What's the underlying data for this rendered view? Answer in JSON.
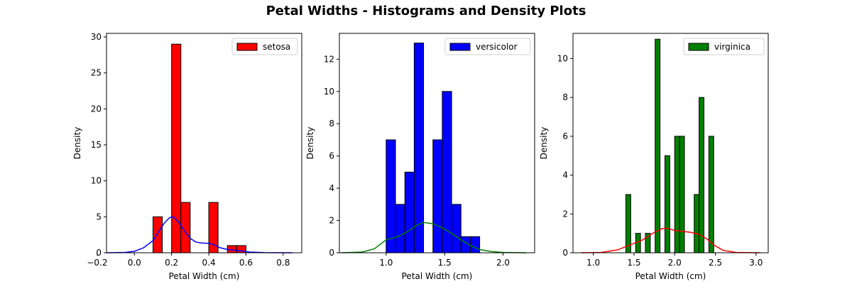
{
  "title": "Petal Widths - Histograms and Density Plots",
  "chart_data": [
    {
      "type": "bar",
      "subtype": "histogram-with-density",
      "xlabel": "Petal Width (cm)",
      "ylabel": "Density",
      "xlim": [
        -0.15,
        0.9
      ],
      "ylim": [
        0,
        30.5
      ],
      "xticks": [
        -0.2,
        0.0,
        0.2,
        0.4,
        0.6,
        0.8
      ],
      "xtick_labels": [
        "−0.2",
        "0.0",
        "0.2",
        "0.4",
        "0.6",
        "0.8"
      ],
      "yticks": [
        0,
        5,
        10,
        15,
        20,
        25,
        30
      ],
      "ytick_labels": [
        "0",
        "5",
        "10",
        "15",
        "20",
        "25",
        "30"
      ],
      "bar_color": "#ff0000",
      "density_color": "#0000ff",
      "legend": "setosa",
      "legend_position": "top-right",
      "bins": [
        {
          "x0": 0.1,
          "x1": 0.15,
          "value": 5
        },
        {
          "x0": 0.15,
          "x1": 0.2,
          "value": 0
        },
        {
          "x0": 0.2,
          "x1": 0.25,
          "value": 29
        },
        {
          "x0": 0.25,
          "x1": 0.3,
          "value": 7
        },
        {
          "x0": 0.3,
          "x1": 0.35,
          "value": 0
        },
        {
          "x0": 0.35,
          "x1": 0.4,
          "value": 0
        },
        {
          "x0": 0.4,
          "x1": 0.45,
          "value": 7
        },
        {
          "x0": 0.45,
          "x1": 0.5,
          "value": 0
        },
        {
          "x0": 0.5,
          "x1": 0.55,
          "value": 1
        },
        {
          "x0": 0.55,
          "x1": 0.6,
          "value": 1
        }
      ],
      "density": {
        "x": [
          -0.15,
          -0.05,
          0.0,
          0.05,
          0.1,
          0.13,
          0.16,
          0.19,
          0.21,
          0.24,
          0.27,
          0.3,
          0.33,
          0.36,
          0.4,
          0.43,
          0.46,
          0.5,
          0.54,
          0.58,
          0.62,
          0.7,
          0.85
        ],
        "y": [
          0,
          0.05,
          0.2,
          0.7,
          1.7,
          2.9,
          4.1,
          4.9,
          5.0,
          4.2,
          3.0,
          2.0,
          1.5,
          1.35,
          1.3,
          1.1,
          0.7,
          0.45,
          0.35,
          0.25,
          0.1,
          0.02,
          0
        ]
      }
    },
    {
      "type": "bar",
      "subtype": "histogram-with-density",
      "xlabel": "Petal Width (cm)",
      "ylabel": "Density",
      "xlim": [
        0.6,
        2.27
      ],
      "ylim": [
        0,
        13.6
      ],
      "xticks": [
        1.0,
        1.5,
        2.0
      ],
      "xtick_labels": [
        "1.0",
        "1.5",
        "2.0"
      ],
      "yticks": [
        0,
        2,
        4,
        6,
        8,
        10,
        12
      ],
      "ytick_labels": [
        "0",
        "2",
        "4",
        "6",
        "8",
        "10",
        "12"
      ],
      "bar_color": "#0000ff",
      "density_color": "#008000",
      "legend": "versicolor",
      "legend_position": "top-right",
      "bins": [
        {
          "x0": 1.0,
          "x1": 1.08,
          "value": 7
        },
        {
          "x0": 1.08,
          "x1": 1.16,
          "value": 3
        },
        {
          "x0": 1.16,
          "x1": 1.24,
          "value": 5
        },
        {
          "x0": 1.24,
          "x1": 1.32,
          "value": 13
        },
        {
          "x0": 1.32,
          "x1": 1.4,
          "value": 0
        },
        {
          "x0": 1.4,
          "x1": 1.48,
          "value": 7
        },
        {
          "x0": 1.48,
          "x1": 1.56,
          "value": 10
        },
        {
          "x0": 1.56,
          "x1": 1.64,
          "value": 3
        },
        {
          "x0": 1.64,
          "x1": 1.72,
          "value": 1
        },
        {
          "x0": 1.72,
          "x1": 1.8,
          "value": 1
        }
      ],
      "density": {
        "x": [
          0.62,
          0.8,
          0.9,
          1.0,
          1.1,
          1.18,
          1.26,
          1.32,
          1.4,
          1.48,
          1.56,
          1.64,
          1.72,
          1.8,
          1.9,
          2.0,
          2.2
        ],
        "y": [
          0,
          0.05,
          0.25,
          0.8,
          1.0,
          1.3,
          1.7,
          1.88,
          1.8,
          1.55,
          1.2,
          0.8,
          0.45,
          0.2,
          0.08,
          0.02,
          0
        ]
      }
    },
    {
      "type": "bar",
      "subtype": "histogram-with-density",
      "xlabel": "Petal Width (cm)",
      "ylabel": "Density",
      "xlim": [
        0.75,
        3.15
      ],
      "ylim": [
        0,
        11.3
      ],
      "xticks": [
        1.0,
        1.5,
        2.0,
        2.5,
        3.0
      ],
      "xtick_labels": [
        "1.0",
        "1.5",
        "2.0",
        "2.5",
        "3.0"
      ],
      "yticks": [
        0,
        2,
        4,
        6,
        8,
        10
      ],
      "ytick_labels": [
        "0",
        "2",
        "4",
        "6",
        "8",
        "10"
      ],
      "bar_color": "#008000",
      "density_color": "#ff0000",
      "legend": "virginica",
      "legend_position": "top-right",
      "bins": [
        {
          "x0": 1.4,
          "x1": 1.46,
          "value": 3
        },
        {
          "x0": 1.46,
          "x1": 1.52,
          "value": 0
        },
        {
          "x0": 1.52,
          "x1": 1.58,
          "value": 1
        },
        {
          "x0": 1.58,
          "x1": 1.64,
          "value": 0
        },
        {
          "x0": 1.64,
          "x1": 1.7,
          "value": 1
        },
        {
          "x0": 1.7,
          "x1": 1.76,
          "value": 0
        },
        {
          "x0": 1.76,
          "x1": 1.82,
          "value": 11
        },
        {
          "x0": 1.82,
          "x1": 1.88,
          "value": 0
        },
        {
          "x0": 1.88,
          "x1": 1.94,
          "value": 5
        },
        {
          "x0": 1.94,
          "x1": 2.0,
          "value": 0
        },
        {
          "x0": 2.0,
          "x1": 2.06,
          "value": 6
        },
        {
          "x0": 2.06,
          "x1": 2.12,
          "value": 6
        },
        {
          "x0": 2.12,
          "x1": 2.18,
          "value": 0
        },
        {
          "x0": 2.18,
          "x1": 2.24,
          "value": 0
        },
        {
          "x0": 2.24,
          "x1": 2.3,
          "value": 3
        },
        {
          "x0": 2.3,
          "x1": 2.36,
          "value": 8
        },
        {
          "x0": 2.36,
          "x1": 2.42,
          "value": 0
        },
        {
          "x0": 2.42,
          "x1": 2.48,
          "value": 6
        },
        {
          "x0": 2.48,
          "x1": 2.5,
          "value": 0
        }
      ],
      "density": {
        "x": [
          0.85,
          1.1,
          1.3,
          1.45,
          1.6,
          1.75,
          1.85,
          1.92,
          2.0,
          2.1,
          2.2,
          2.3,
          2.4,
          2.5,
          2.6,
          2.75,
          3.05
        ],
        "y": [
          0,
          0.02,
          0.15,
          0.4,
          0.65,
          1.05,
          1.25,
          1.25,
          1.15,
          1.1,
          1.05,
          0.95,
          0.7,
          0.35,
          0.12,
          0.02,
          0
        ]
      }
    }
  ]
}
